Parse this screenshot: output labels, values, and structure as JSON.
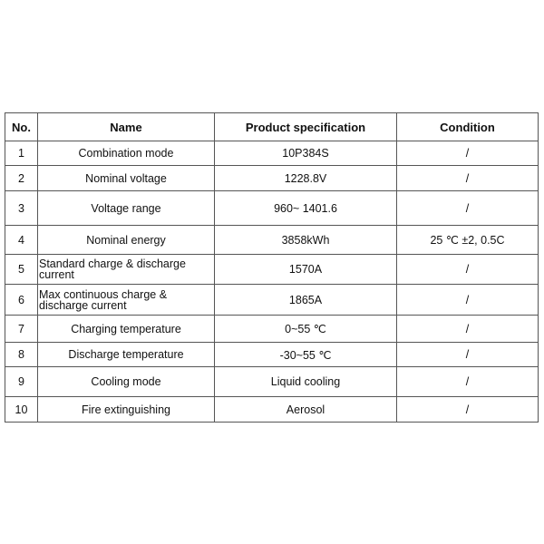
{
  "table": {
    "headers": [
      "No.",
      "Name",
      "Product specification",
      "Condition"
    ],
    "rows": [
      {
        "no": "1",
        "name": "Combination mode",
        "spec": "10P384S",
        "condition": "/"
      },
      {
        "no": "2",
        "name": "Nominal voltage",
        "spec": "1228.8V",
        "condition": "/"
      },
      {
        "no": "3",
        "name": "Voltage range",
        "spec": "960~ 1401.6",
        "condition": "/"
      },
      {
        "no": "4",
        "name": "Nominal energy",
        "spec": "3858kWh",
        "condition": "25 ℃ ±2,   0.5C"
      },
      {
        "no": "5",
        "name": "Standard charge & discharge current",
        "spec": "1570A",
        "condition": "/"
      },
      {
        "no": "6",
        "name": "Max continuous charge & discharge current",
        "spec": "1865A",
        "condition": "/"
      },
      {
        "no": "7",
        "name": "Charging temperature",
        "spec": "0~55 ℃",
        "condition": "/"
      },
      {
        "no": "8",
        "name": "Discharge temperature",
        "spec": "-30~55 ℃",
        "condition": "/"
      },
      {
        "no": "9",
        "name": "Cooling mode",
        "spec": "Liquid cooling",
        "condition": "/"
      },
      {
        "no": "10",
        "name": "Fire extinguishing",
        "spec": "Aerosol",
        "condition": "/"
      }
    ]
  }
}
